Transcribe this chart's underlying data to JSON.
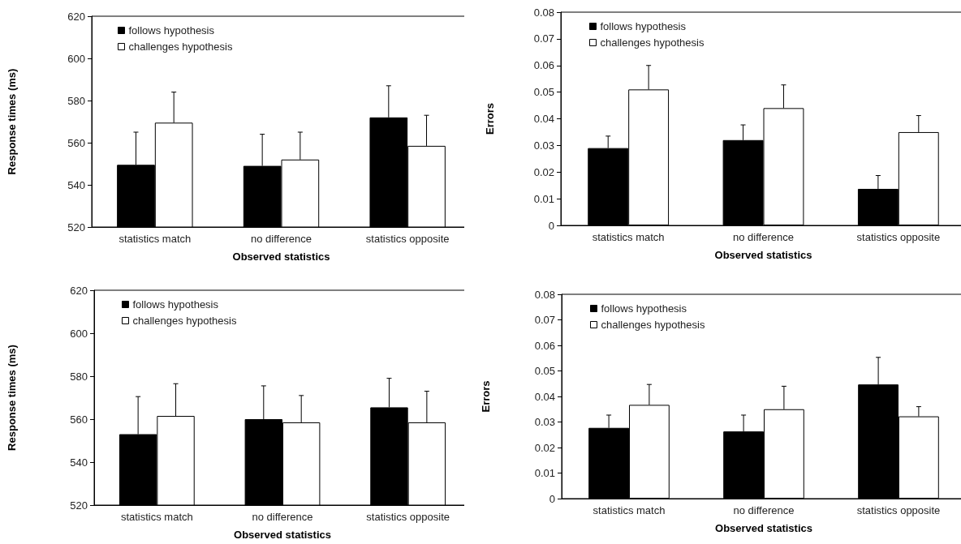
{
  "chart_data": [
    {
      "type": "bar",
      "categories": [
        "statistics match",
        "no difference",
        "statistics opposite"
      ],
      "xlabel": "Observed statistics",
      "ylabel": "Response times (ms)",
      "ylim": [
        520,
        620
      ],
      "yticks": [
        520,
        540,
        560,
        580,
        600,
        620
      ],
      "legend": "top left",
      "series": [
        {
          "name": "follows hypothesis",
          "color": "#000000",
          "values": [
            549.5,
            549,
            572
          ],
          "errors": [
            [
              549.5,
              565
            ],
            [
              549,
              564
            ],
            [
              572,
              587
            ]
          ]
        },
        {
          "name": "challenges hypothesis",
          "color": "#ffffff",
          "values": [
            569.5,
            552,
            558.5
          ],
          "errors": [
            [
              569.5,
              584
            ],
            [
              552,
              565
            ],
            [
              558.5,
              573
            ]
          ]
        }
      ]
    },
    {
      "type": "bar",
      "categories": [
        "statistics match",
        "no difference",
        "statistics opposite"
      ],
      "xlabel": "Observed statistics",
      "ylabel": "Errors",
      "ylim": [
        0,
        0.08
      ],
      "yticks": [
        0,
        0.01,
        0.02,
        0.03,
        0.04,
        0.05,
        0.06,
        0.07,
        0.08
      ],
      "legend": "top left",
      "series": [
        {
          "name": "follows hypothesis",
          "color": "#000000",
          "values": [
            0.029,
            0.032,
            0.0137
          ],
          "errors": [
            [
              0.029,
              0.0335
            ],
            [
              0.032,
              0.0377
            ],
            [
              0.0137,
              0.0187
            ]
          ]
        },
        {
          "name": "challenges hypothesis",
          "color": "#ffffff",
          "values": [
            0.051,
            0.044,
            0.035
          ],
          "errors": [
            [
              0.051,
              0.06
            ],
            [
              0.044,
              0.0527
            ],
            [
              0.035,
              0.0412
            ]
          ]
        }
      ]
    },
    {
      "type": "bar",
      "categories": [
        "statistics match",
        "no difference",
        "statistics opposite"
      ],
      "xlabel": "Observed statistics",
      "ylabel": "Response times (ms)",
      "ylim": [
        520,
        620
      ],
      "yticks": [
        520,
        540,
        560,
        580,
        600,
        620
      ],
      "legend": "top left",
      "series": [
        {
          "name": "follows hypothesis",
          "color": "#000000",
          "values": [
            553,
            560,
            565.5
          ],
          "errors": [
            [
              553,
              570.5
            ],
            [
              560,
              575.5
            ],
            [
              565.5,
              579
            ]
          ]
        },
        {
          "name": "challenges hypothesis",
          "color": "#ffffff",
          "values": [
            561.5,
            558.5,
            558.5
          ],
          "errors": [
            [
              561.5,
              576.5
            ],
            [
              558.5,
              571
            ],
            [
              558.5,
              573
            ]
          ]
        }
      ]
    },
    {
      "type": "bar",
      "categories": [
        "statistics match",
        "no difference",
        "statistics opposite"
      ],
      "xlabel": "Observed statistics",
      "ylabel": "Errors",
      "ylim": [
        0,
        0.08
      ],
      "yticks": [
        0,
        0.01,
        0.02,
        0.03,
        0.04,
        0.05,
        0.06,
        0.07,
        0.08
      ],
      "legend": "top left",
      "series": [
        {
          "name": "follows hypothesis",
          "color": "#000000",
          "values": [
            0.0277,
            0.0263,
            0.0447
          ],
          "errors": [
            [
              0.0277,
              0.0327
            ],
            [
              0.0263,
              0.0327
            ],
            [
              0.0447,
              0.0553
            ]
          ]
        },
        {
          "name": "challenges hypothesis",
          "color": "#ffffff",
          "values": [
            0.0367,
            0.035,
            0.0322
          ],
          "errors": [
            [
              0.0367,
              0.0447
            ],
            [
              0.035,
              0.044
            ],
            [
              0.0322,
              0.036
            ]
          ]
        }
      ]
    }
  ]
}
